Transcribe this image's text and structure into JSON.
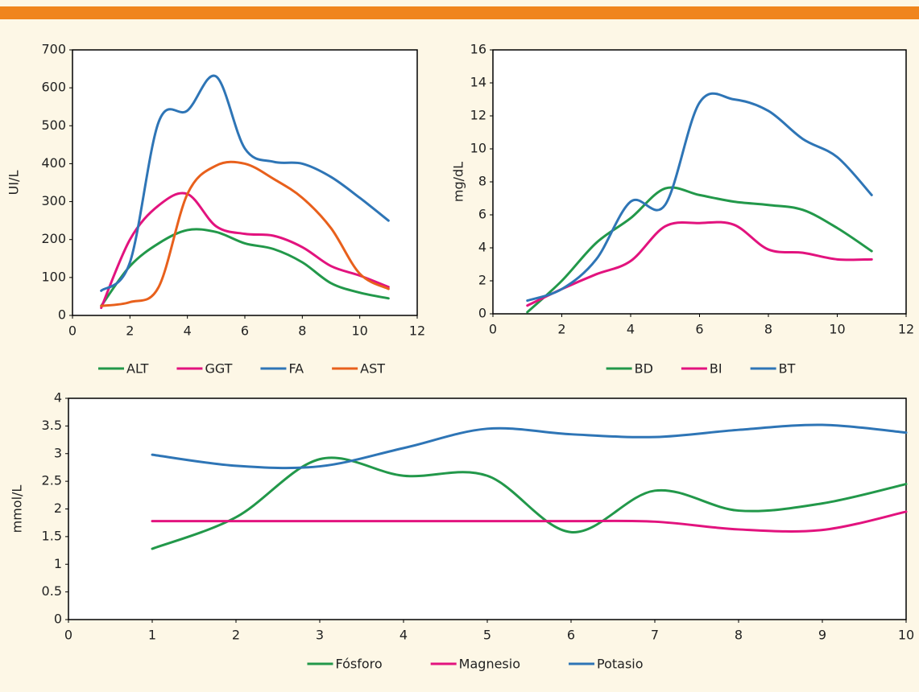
{
  "chart_data": [
    {
      "type": "line",
      "y_label": "UI/L",
      "xlim": [
        0,
        12
      ],
      "xticks": [
        0,
        2,
        4,
        6,
        8,
        10,
        12
      ],
      "ylim": [
        0,
        700
      ],
      "yticks": [
        0,
        100,
        200,
        300,
        400,
        500,
        600,
        700
      ],
      "x": [
        1,
        2,
        3,
        4,
        5,
        6,
        7,
        8,
        9,
        10,
        11
      ],
      "series": [
        {
          "name": "ALT",
          "color": "#22984a",
          "values": [
            25,
            130,
            190,
            225,
            220,
            190,
            175,
            140,
            85,
            60,
            45
          ]
        },
        {
          "name": "GGT",
          "color": "#e2137e",
          "values": [
            20,
            200,
            290,
            320,
            235,
            215,
            210,
            180,
            130,
            105,
            75
          ]
        },
        {
          "name": "FA",
          "color": "#2e75b6",
          "values": [
            65,
            140,
            510,
            540,
            630,
            440,
            405,
            400,
            365,
            310,
            250
          ]
        },
        {
          "name": "AST",
          "color": "#e8601c",
          "values": [
            25,
            35,
            75,
            320,
            395,
            400,
            360,
            310,
            230,
            110,
            70
          ]
        }
      ]
    },
    {
      "type": "line",
      "y_label": "mg/dL",
      "xlim": [
        0,
        12
      ],
      "xticks": [
        0,
        2,
        4,
        6,
        8,
        10,
        12
      ],
      "ylim": [
        0,
        16
      ],
      "yticks": [
        0,
        2,
        4,
        6,
        8,
        10,
        12,
        14,
        16
      ],
      "x": [
        1,
        2,
        3,
        4,
        5,
        6,
        7,
        8,
        9,
        10,
        11
      ],
      "series": [
        {
          "name": "BD",
          "color": "#22984a",
          "values": [
            0.1,
            2.0,
            4.3,
            5.8,
            7.6,
            7.2,
            6.8,
            6.6,
            6.3,
            5.2,
            3.8
          ]
        },
        {
          "name": "BI",
          "color": "#e2137e",
          "values": [
            0.5,
            1.5,
            2.4,
            3.2,
            5.3,
            5.5,
            5.4,
            3.9,
            3.7,
            3.3,
            3.3
          ]
        },
        {
          "name": "BT",
          "color": "#2e75b6",
          "values": [
            0.8,
            1.5,
            3.3,
            6.8,
            6.6,
            12.8,
            13.0,
            12.3,
            10.6,
            9.5,
            7.2
          ]
        }
      ]
    },
    {
      "type": "line",
      "y_label": "mmol/L",
      "xlim": [
        0,
        10
      ],
      "xticks": [
        0,
        1,
        2,
        3,
        4,
        5,
        6,
        7,
        8,
        9,
        10
      ],
      "ylim": [
        0,
        4
      ],
      "yticks": [
        0,
        0.5,
        1,
        1.5,
        2,
        2.5,
        3,
        3.5,
        4
      ],
      "x": [
        1,
        2,
        3,
        4,
        5,
        6,
        7,
        8,
        9,
        10
      ],
      "series": [
        {
          "name": "Fósforo",
          "color": "#22984a",
          "values": [
            1.28,
            1.85,
            2.9,
            2.6,
            2.6,
            1.58,
            2.33,
            1.97,
            2.1,
            2.45
          ]
        },
        {
          "name": "Magnesio",
          "color": "#e2137e",
          "values": [
            1.78,
            1.78,
            1.78,
            1.78,
            1.78,
            1.78,
            1.77,
            1.63,
            1.62,
            1.95
          ]
        },
        {
          "name": "Potasio",
          "color": "#2e75b6",
          "values": [
            2.98,
            2.78,
            2.77,
            3.1,
            3.45,
            3.35,
            3.3,
            3.43,
            3.52,
            3.38
          ]
        }
      ]
    }
  ]
}
